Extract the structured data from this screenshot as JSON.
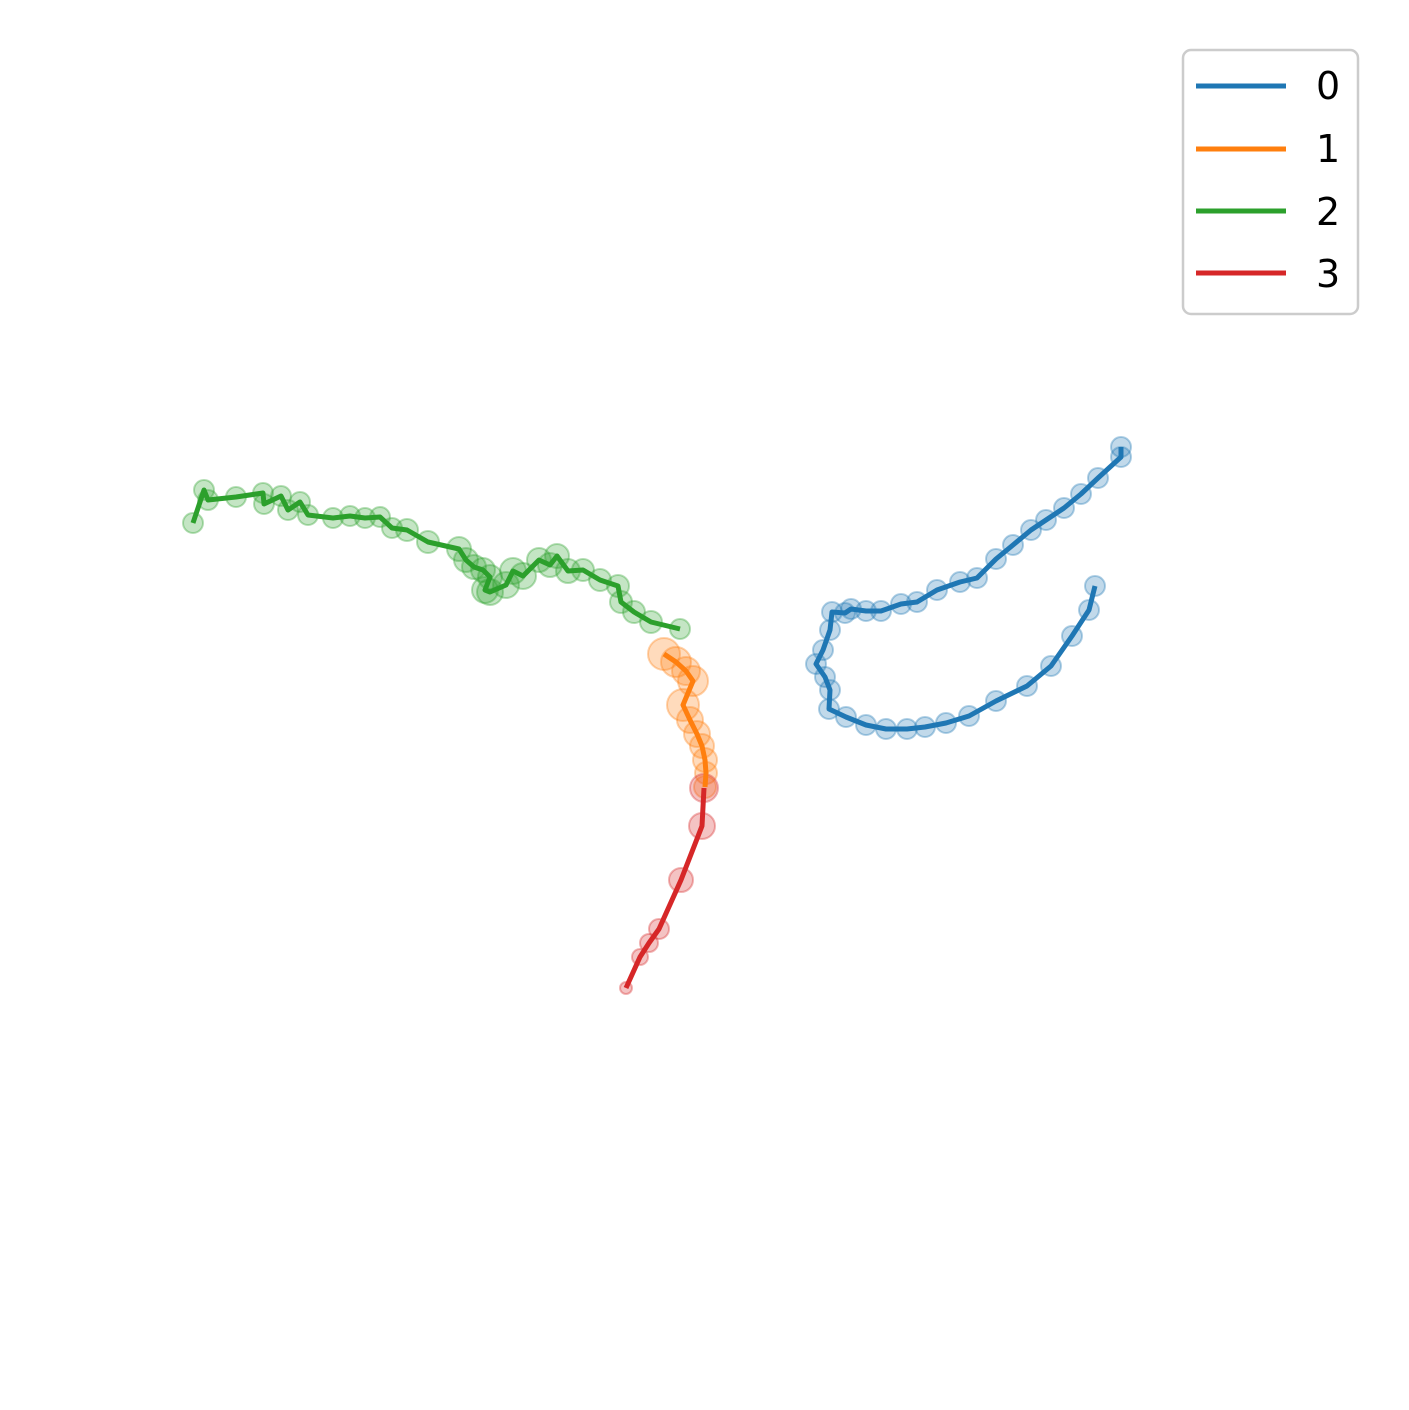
{
  "chart_data": {
    "type": "line",
    "axes_visible": false,
    "grid": false,
    "legend_position": "top-right",
    "marker_style": "translucent circles with size varying along each path",
    "series": [
      {
        "name": "0",
        "color": "#1f77b4",
        "points": [
          [
            1121,
            447
          ],
          [
            1121,
            457
          ],
          [
            1098,
            478
          ],
          [
            1081,
            494
          ],
          [
            1064,
            508
          ],
          [
            1046,
            520
          ],
          [
            1031,
            530
          ],
          [
            1013,
            545
          ],
          [
            996,
            559
          ],
          [
            977,
            578
          ],
          [
            960,
            582
          ],
          [
            937,
            590
          ],
          [
            917,
            602
          ],
          [
            901,
            604
          ],
          [
            881,
            611
          ],
          [
            866,
            611
          ],
          [
            851,
            609
          ],
          [
            845,
            613
          ],
          [
            832,
            612
          ],
          [
            830,
            630
          ],
          [
            823,
            650
          ],
          [
            816,
            664
          ],
          [
            825,
            677
          ],
          [
            830,
            690
          ],
          [
            829,
            709
          ],
          [
            846,
            717
          ],
          [
            866,
            725
          ],
          [
            886,
            729
          ],
          [
            907,
            729
          ],
          [
            925,
            727
          ],
          [
            946,
            723
          ],
          [
            969,
            716
          ],
          [
            996,
            701
          ],
          [
            1027,
            686
          ],
          [
            1051,
            666
          ],
          [
            1072,
            636
          ],
          [
            1089,
            610
          ],
          [
            1095,
            586
          ]
        ],
        "sizes": [
          1,
          1,
          1,
          1,
          1,
          1,
          1,
          1,
          1,
          1,
          1,
          1,
          1,
          1,
          1,
          1,
          1,
          1,
          1,
          1,
          1,
          1,
          1,
          1,
          1,
          1,
          1,
          1,
          1,
          1,
          1,
          1,
          1,
          1,
          1,
          1,
          1,
          1
        ]
      },
      {
        "name": "1",
        "color": "#ff7f0e",
        "points": [
          [
            664,
            654
          ],
          [
            676,
            662
          ],
          [
            686,
            671
          ],
          [
            693,
            681
          ],
          [
            683,
            705
          ],
          [
            690,
            720
          ],
          [
            697,
            734
          ],
          [
            702,
            746
          ],
          [
            705,
            760
          ],
          [
            706,
            773
          ],
          [
            705,
            787
          ]
        ],
        "sizes": [
          1.6,
          1.5,
          1.4,
          1.5,
          1.6,
          1.3,
          1.3,
          1.2,
          1.2,
          1.1,
          1.1
        ]
      },
      {
        "name": "2",
        "color": "#2ca02c",
        "points": [
          [
            193,
            523
          ],
          [
            204,
            490
          ],
          [
            208,
            500
          ],
          [
            236,
            497
          ],
          [
            263,
            493
          ],
          [
            264,
            504
          ],
          [
            281,
            496
          ],
          [
            288,
            510
          ],
          [
            300,
            502
          ],
          [
            308,
            515
          ],
          [
            333,
            518
          ],
          [
            350,
            516
          ],
          [
            365,
            518
          ],
          [
            380,
            517
          ],
          [
            392,
            528
          ],
          [
            407,
            530
          ],
          [
            428,
            542
          ],
          [
            459,
            549
          ],
          [
            466,
            560
          ],
          [
            474,
            567
          ],
          [
            483,
            570
          ],
          [
            490,
            577
          ],
          [
            485,
            590
          ],
          [
            490,
            592
          ],
          [
            506,
            585
          ],
          [
            513,
            571
          ],
          [
            523,
            576
          ],
          [
            539,
            560
          ],
          [
            550,
            565
          ],
          [
            557,
            556
          ],
          [
            568,
            571
          ],
          [
            583,
            570
          ],
          [
            600,
            580
          ],
          [
            618,
            586
          ],
          [
            621,
            602
          ],
          [
            634,
            612
          ],
          [
            651,
            622
          ],
          [
            680,
            629
          ]
        ],
        "sizes": [
          1,
          1,
          1,
          1,
          1,
          1,
          1,
          1,
          1,
          1,
          1,
          1,
          1,
          1,
          1,
          1.1,
          1.1,
          1.2,
          1.2,
          1.2,
          1.2,
          1.2,
          1.3,
          1.3,
          1.3,
          1.3,
          1.3,
          1.2,
          1.2,
          1.2,
          1.2,
          1.1,
          1.1,
          1.1,
          1.1,
          1.1,
          1.1,
          1
        ]
      },
      {
        "name": "3",
        "color": "#d62728",
        "points": [
          [
            704,
            788
          ],
          [
            702,
            826
          ],
          [
            681,
            880
          ],
          [
            659,
            929
          ],
          [
            649,
            943
          ],
          [
            640,
            957
          ],
          [
            626,
            988
          ]
        ],
        "sizes": [
          1.4,
          1.3,
          1.2,
          1.0,
          0.9,
          0.8,
          0.6
        ]
      }
    ]
  },
  "legend": {
    "entries": [
      "0",
      "1",
      "2",
      "3"
    ]
  }
}
